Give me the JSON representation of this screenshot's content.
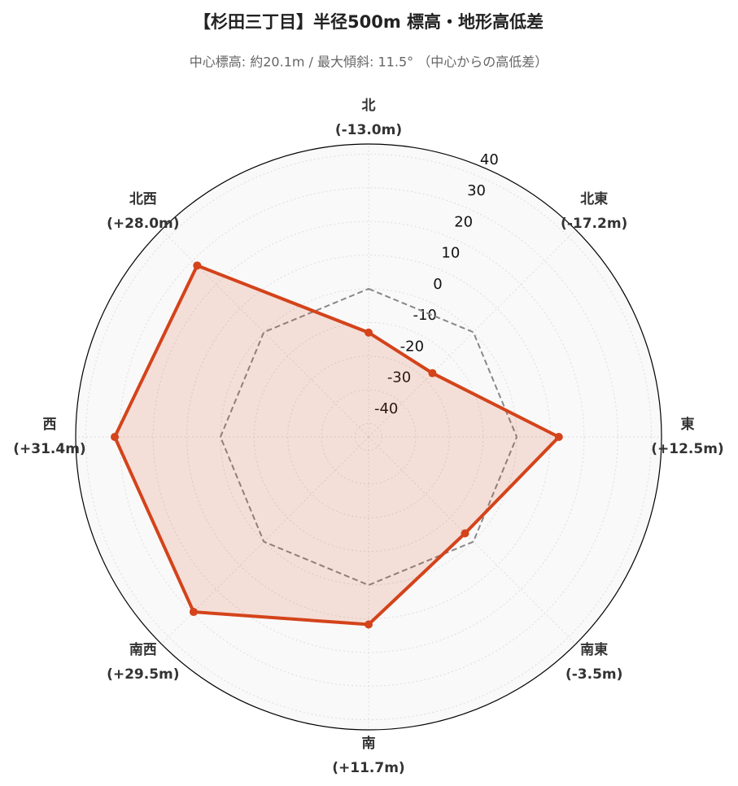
{
  "chart_data": {
    "type": "radar",
    "title": "【杉田三丁目】半径500m 標高・地形高低差",
    "subtitle": "中心標高: 約20.1m / 最大傾斜: 11.5° （中心からの高低差）",
    "categories": [
      "北",
      "北東",
      "東",
      "南東",
      "南",
      "南西",
      "西",
      "北西"
    ],
    "values": [
      -13.0,
      -17.2,
      12.5,
      -3.5,
      11.7,
      29.5,
      31.4,
      28.0
    ],
    "value_labels": [
      "(-13.0m)",
      "(-17.2m)",
      "(+12.5m)",
      "(-3.5m)",
      "(+11.7m)",
      "(+29.5m)",
      "(+31.4m)",
      "(+28.0m)"
    ],
    "color": "#d4431a",
    "reference_line": 0,
    "rlim": [
      -44,
      43
    ],
    "rticks": [
      -40,
      -30,
      -20,
      -10,
      0,
      10,
      20,
      30,
      40
    ],
    "grid": true
  }
}
